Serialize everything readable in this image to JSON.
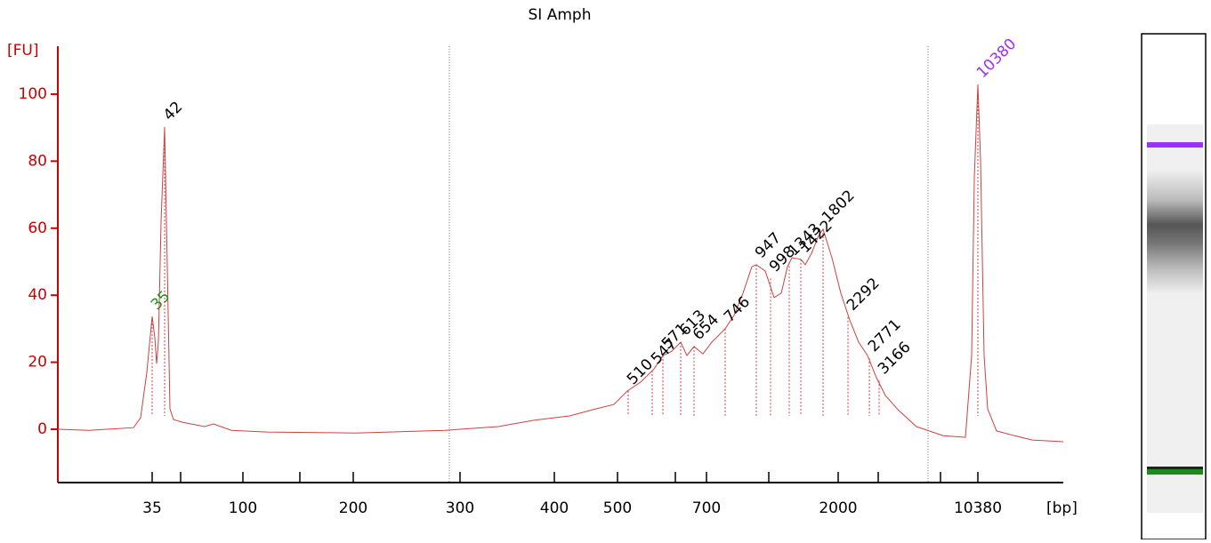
{
  "chart_data": {
    "type": "line",
    "title": "SI Amph",
    "y_label": "[FU]",
    "x_label": "[bp]",
    "color": "#d04040",
    "x": [
      0,
      35,
      85,
      93,
      100,
      106,
      109,
      111,
      113,
      116,
      120,
      123,
      126,
      130,
      140,
      165,
      175,
      180,
      195,
      235,
      335,
      435,
      495,
      535,
      575,
      605,
      625,
      640,
      655,
      670,
      680,
      690,
      700,
      707,
      715,
      725,
      735,
      750,
      760,
      770,
      780,
      785,
      795,
      805,
      813,
      820,
      825,
      835,
      840,
      847,
      855,
      860,
      870,
      880,
      890,
      900,
      910,
      920,
      930,
      945,
      965,
      995,
      1020,
      1027,
      1030,
      1034,
      1037,
      1041,
      1045,
      1055,
      1075,
      1095,
      1130
    ],
    "values": [
      0,
      -0.3,
      0.5,
      3.4,
      17.0,
      33.7,
      27.3,
      19.6,
      26.0,
      61.8,
      90.2,
      48.5,
      6.1,
      2.9,
      2.1,
      0.8,
      1.6,
      1.1,
      -0.3,
      -0.8,
      -1.1,
      -0.3,
      0.8,
      2.7,
      4.0,
      6.1,
      7.4,
      11.4,
      14.1,
      18.0,
      22.0,
      23.3,
      26.0,
      22.0,
      24.7,
      22.5,
      26.0,
      30.0,
      34.0,
      40.6,
      48.5,
      49.1,
      47.2,
      39.3,
      40.6,
      48.5,
      51.2,
      50.7,
      49.1,
      52.5,
      57.8,
      59.7,
      51.2,
      40.6,
      32.6,
      26.0,
      22.0,
      15.4,
      10.1,
      5.6,
      0.8,
      -1.9,
      -2.4,
      22.0,
      75.1,
      102.9,
      80.4,
      22.0,
      6.1,
      -0.5,
      -1.9,
      -3.2,
      -3.7
    ],
    "peaks": [
      {
        "size": 35,
        "x": 106,
        "y": 33.7,
        "color": "#228b22"
      },
      {
        "size": 42,
        "x": 120,
        "y": 90.2,
        "color": "#000000"
      },
      {
        "size": 510,
        "x": 641,
        "y": 11.4,
        "color": "#000000"
      },
      {
        "size": 547,
        "x": 668,
        "y": 17.5,
        "color": "#000000"
      },
      {
        "size": 571,
        "x": 680,
        "y": 22.0,
        "color": "#000000"
      },
      {
        "size": 613,
        "x": 700,
        "y": 26.0,
        "color": "#000000"
      },
      {
        "size": 654,
        "x": 715,
        "y": 24.7,
        "color": "#000000"
      },
      {
        "size": 746,
        "x": 750,
        "y": 30.0,
        "color": "#000000"
      },
      {
        "size": 947,
        "x": 785,
        "y": 49.1,
        "color": "#000000"
      },
      {
        "size": 998,
        "x": 801,
        "y": 45.0,
        "color": "#000000"
      },
      {
        "size": 1343,
        "x": 822,
        "y": 49.8,
        "color": "#000000"
      },
      {
        "size": 1422,
        "x": 835,
        "y": 50.7,
        "color": "#000000"
      },
      {
        "size": 1802,
        "x": 860,
        "y": 59.7,
        "color": "#000000"
      },
      {
        "size": 2292,
        "x": 888,
        "y": 33.5,
        "color": "#000000"
      },
      {
        "size": 2771,
        "x": 912,
        "y": 21.2,
        "color": "#000000"
      },
      {
        "size": 3166,
        "x": 923,
        "y": 14.5,
        "color": "#000000"
      },
      {
        "size": 10380,
        "x": 1034,
        "y": 102.9,
        "color": "#9b30ff"
      }
    ],
    "xlim": [
      0,
      1130
    ],
    "xticks": [
      {
        "value": 106,
        "label": "35"
      },
      {
        "value": 208,
        "label": "100"
      },
      {
        "value": 332,
        "label": "200"
      },
      {
        "value": 452,
        "label": "300"
      },
      {
        "value": 558,
        "label": "400"
      },
      {
        "value": 629,
        "label": "500"
      },
      {
        "value": 729,
        "label": "700"
      },
      {
        "value": 877,
        "label": "2000"
      },
      {
        "value": 1034,
        "label": "10380"
      }
    ],
    "xminorticks": [
      138,
      272,
      694,
      799,
      922,
      992
    ],
    "vlines": [
      440,
      978
    ],
    "ylim": [
      -15.9,
      114.3
    ],
    "yticks": [
      0,
      20,
      40,
      60,
      80,
      100
    ]
  }
}
